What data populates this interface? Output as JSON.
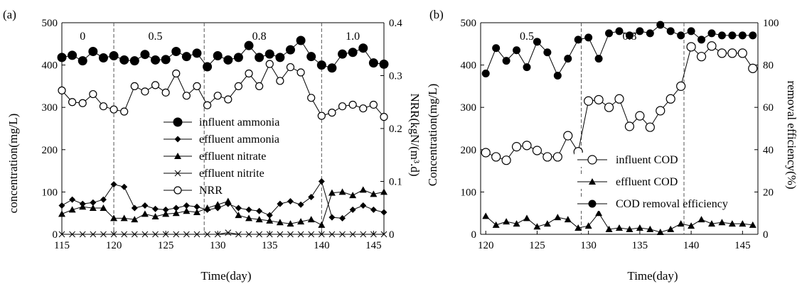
{
  "figure": {
    "panel_a_label": "(a)",
    "panel_b_label": "(b)"
  },
  "chart_data": [
    {
      "type": "line",
      "panel": "(a)",
      "xlabel": "Time(day)",
      "ylabel": "concentration(mg/L)",
      "y2label": "NRR(kgN/(m³.d)",
      "xlim": [
        115,
        146
      ],
      "ylim": [
        0,
        500
      ],
      "y2lim": [
        0,
        0.4
      ],
      "xticks": [
        "115",
        "120",
        "125",
        "130",
        "135",
        "140",
        "145"
      ],
      "yticks": [
        "0",
        "100",
        "200",
        "300",
        "400",
        "500"
      ],
      "y2ticks": [
        "0",
        "0.1",
        "0.2",
        "0.3",
        "0.4"
      ],
      "phase_dividers": [
        120,
        128.7,
        140
      ],
      "phase_labels": [
        {
          "text": "0",
          "x": 117
        },
        {
          "text": "0.5",
          "x": 124
        },
        {
          "text": "0.8",
          "x": 134
        },
        {
          "text": "1.0",
          "x": 143
        }
      ],
      "legend_position": "center",
      "series": [
        {
          "name": "influent ammonia",
          "marker": "filled-circle",
          "axis": "left",
          "x": [
            115,
            116,
            117,
            118,
            119,
            120,
            121,
            122,
            123,
            124,
            125,
            126,
            127,
            128,
            129,
            130,
            131,
            132,
            133,
            134,
            135,
            136,
            137,
            138,
            139,
            140,
            141,
            142,
            143,
            144,
            145,
            146
          ],
          "values": [
            418,
            423,
            410,
            432,
            417,
            422,
            412,
            410,
            425,
            412,
            413,
            432,
            420,
            428,
            396,
            422,
            412,
            418,
            446,
            418,
            426,
            418,
            436,
            458,
            420,
            400,
            393,
            426,
            430,
            440,
            405,
            402
          ]
        },
        {
          "name": "effluent ammonia",
          "marker": "filled-diamond",
          "axis": "left",
          "x": [
            115,
            116,
            117,
            118,
            119,
            120,
            121,
            122,
            123,
            124,
            125,
            126,
            127,
            128,
            129,
            130,
            131,
            132,
            133,
            134,
            135,
            136,
            137,
            138,
            139,
            140,
            141,
            142,
            143,
            144,
            145,
            146
          ],
          "values": [
            68,
            82,
            72,
            75,
            82,
            118,
            112,
            62,
            68,
            60,
            58,
            62,
            68,
            65,
            58,
            62,
            72,
            62,
            58,
            55,
            45,
            72,
            78,
            70,
            88,
            125,
            40,
            38,
            58,
            68,
            58,
            52
          ]
        },
        {
          "name": "effluent nitrate",
          "marker": "filled-triangle",
          "axis": "left",
          "x": [
            115,
            116,
            117,
            118,
            119,
            120,
            121,
            122,
            123,
            124,
            125,
            126,
            127,
            128,
            129,
            130,
            131,
            132,
            133,
            134,
            135,
            136,
            137,
            138,
            139,
            140,
            141,
            142,
            143,
            144,
            145,
            146
          ],
          "values": [
            48,
            58,
            65,
            62,
            62,
            38,
            38,
            35,
            48,
            42,
            48,
            50,
            55,
            52,
            62,
            70,
            78,
            45,
            38,
            35,
            32,
            28,
            25,
            30,
            35,
            22,
            98,
            100,
            92,
            105,
            95,
            100
          ]
        },
        {
          "name": "effluent nitrite",
          "marker": "cross",
          "axis": "left",
          "x": [
            115,
            116,
            117,
            118,
            119,
            120,
            121,
            122,
            123,
            124,
            125,
            126,
            127,
            128,
            129,
            130,
            131,
            132,
            133,
            134,
            135,
            136,
            137,
            138,
            139,
            140,
            141,
            142,
            143,
            144,
            145,
            146
          ],
          "values": [
            0,
            0,
            0,
            0,
            0,
            0,
            0,
            0,
            0,
            0,
            0,
            0,
            0,
            0,
            0,
            0,
            4,
            0,
            0,
            0,
            0,
            0,
            0,
            0,
            0,
            0,
            0,
            0,
            0,
            0,
            0,
            0
          ]
        },
        {
          "name": "NRR",
          "marker": "open-circle",
          "axis": "right",
          "x": [
            115,
            116,
            117,
            118,
            119,
            120,
            121,
            122,
            123,
            124,
            125,
            126,
            127,
            128,
            129,
            130,
            131,
            132,
            133,
            134,
            135,
            136,
            137,
            138,
            139,
            140,
            141,
            142,
            143,
            144,
            145,
            146
          ],
          "values": [
            0.272,
            0.25,
            0.248,
            0.265,
            0.242,
            0.236,
            0.232,
            0.28,
            0.27,
            0.282,
            0.268,
            0.304,
            0.262,
            0.28,
            0.244,
            0.262,
            0.255,
            0.28,
            0.304,
            0.28,
            0.322,
            0.29,
            0.316,
            0.306,
            0.258,
            0.224,
            0.23,
            0.242,
            0.245,
            0.238,
            0.245,
            0.222
          ]
        }
      ]
    },
    {
      "type": "line",
      "panel": "(b)",
      "xlabel": "Time(day)",
      "ylabel": "Concentration(mg/L)",
      "y2label": "removal efficiency(%)",
      "xlim": [
        119.5,
        146.5
      ],
      "ylim": [
        0,
        500
      ],
      "y2lim": [
        0,
        100
      ],
      "xticks": [
        "120",
        "125",
        "130",
        "135",
        "140",
        "145"
      ],
      "yticks": [
        "0",
        "100",
        "200",
        "300",
        "400",
        "500"
      ],
      "y2ticks": [
        "0",
        "20",
        "40",
        "60",
        "80",
        "100"
      ],
      "phase_dividers": [
        129.3,
        139.3
      ],
      "phase_labels": [
        {
          "text": "0.5",
          "x": 124
        },
        {
          "text": "0.8",
          "x": 134
        }
      ],
      "legend_position": "center",
      "series": [
        {
          "name": "influent COD",
          "marker": "open-circle",
          "axis": "left",
          "x": [
            120,
            121,
            122,
            123,
            124,
            125,
            126,
            127,
            128,
            129,
            130,
            131,
            132,
            133,
            134,
            135,
            136,
            137,
            138,
            139,
            140,
            141,
            142,
            143,
            144,
            145,
            146
          ],
          "values": [
            193,
            183,
            175,
            207,
            210,
            198,
            183,
            183,
            233,
            195,
            315,
            318,
            300,
            320,
            255,
            280,
            253,
            292,
            320,
            350,
            443,
            420,
            445,
            428,
            428,
            428,
            392
          ]
        },
        {
          "name": "effluent COD",
          "marker": "filled-triangle",
          "axis": "left",
          "x": [
            120,
            121,
            122,
            123,
            124,
            125,
            126,
            127,
            128,
            129,
            130,
            131,
            132,
            133,
            134,
            135,
            136,
            137,
            138,
            139,
            140,
            141,
            142,
            143,
            144,
            145,
            146
          ],
          "values": [
            43,
            22,
            30,
            25,
            38,
            18,
            25,
            40,
            35,
            15,
            20,
            50,
            12,
            15,
            12,
            15,
            12,
            5,
            12,
            25,
            20,
            35,
            25,
            28,
            25,
            25,
            22
          ]
        },
        {
          "name": "COD removal efficiency",
          "marker": "filled-circle",
          "axis": "right",
          "x": [
            120,
            121,
            122,
            123,
            124,
            125,
            126,
            127,
            128,
            129,
            130,
            131,
            132,
            133,
            134,
            135,
            136,
            137,
            138,
            139,
            140,
            141,
            142,
            143,
            144,
            145,
            146
          ],
          "values": [
            76,
            88,
            82,
            87,
            79,
            91,
            86,
            75,
            83,
            92,
            93,
            83,
            95,
            96,
            94,
            96,
            95,
            99,
            96,
            94,
            96,
            92,
            95,
            94,
            94,
            94,
            94
          ]
        }
      ]
    }
  ]
}
